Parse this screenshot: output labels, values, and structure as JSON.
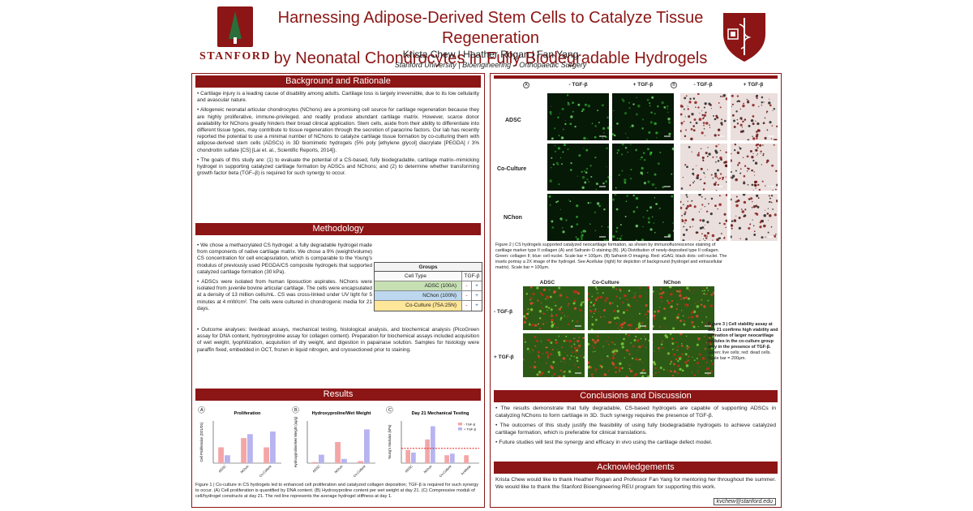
{
  "header": {
    "title_line1": "Harnessing Adipose-Derived Stem Cells to Catalyze Tissue Regeneration",
    "title_line2": "by Neonatal Chondrocytes in Fully Biodegradable Hydrogels",
    "authors": "Krista Chew  |  Heather Rogan  |  Fan Yang",
    "affiliation": "Stanford University  |  Bioengineering – Orthopaedic Surgery",
    "logo_left_text": "STANFORD"
  },
  "background": {
    "heading": "Background and Rationale",
    "p1": "• Cartilage injury is a leading cause of disability among adults. Cartilage loss is largely irreversible, due to its low cellularity and avascular nature.",
    "p2": "• Allogeneic neonatal articular chondrocytes (NChons) are a promising cell source for cartilage regeneration because they are highly proliferative, immune-privileged, and readily produce abundant cartilage matrix. However, scarce donor availability for NChons greatly hinders their broad clinical application. Stem cells, aside from their ability to differentiate into different tissue types, may contribute to tissue regeneration through the secretion of paracrine factors. Our lab has recently reported the potential to use a minimal number of NChons to catalyze cartilage tissue formation by co-culturing them with adipose-derived stem cells (ADSCs) in 3D biomimetic hydrogels (5% poly [ethylene glycol] diacrylate [PEGDA] / 3% chondroitin sulfate [CS] [Lai et. al., Scientific Reports, 2014]).",
    "p3": "• The goals of this study are: (1) to evaluate the potential of a CS-based, fully biodegradable, cartilage matrix–mimicking hydrogel in supporting catalyzed cartilage formation by ADSCs and NChons; and (2) to determine whether transforming growth factor beta (TGF–β) is required for such synergy to occur."
  },
  "methodology": {
    "heading": "Methodology",
    "p1": "• We chose a methacrylated CS hydrogel: a fully degradable hydrogel made from components of native cartilage matrix. We chose a 9% (weight/volume) CS concentration for cell encapsulation, which is comparable to the Young's modulus of previously used PEGDA/CS composite hydrogels that supported catalyzed cartilage formation (30 kPa).",
    "p2": "• ADSCs were isolated from human liposuction aspirates. NChons were isolated from juvenile bovine articular cartilage. The cells were encapsulated at a density of 13 million cells/mL. CS was cross-linked under UV light for 5 minutes at 4 mW/cm². The cells were cultured in chondrogenic media for 21 days.",
    "p3": "• Outcome analyses: live/dead assays, mechanical testing, histological analysis, and biochemical analysis (PicoGreen assay for DNA content, hydroxyproline assay for collagen content). Preparation for biochemical assays included acquisition of wet weight, lyophilization, acquisition of dry weight, and digestion in papainase solution. Samples for histology were paraffin fixed, embedded in OCT, frozen in liquid nitrogen, and cryosectioned prior to staining.",
    "groups_table": {
      "title": "Groups",
      "col1": "Cell Type",
      "col2": "TGF-β",
      "rows": [
        {
          "name": "ADSC (100A)",
          "minus": "-",
          "plus": "+",
          "color": "#c6e0b4"
        },
        {
          "name": "NChon (100N)",
          "minus": "-",
          "plus": "+",
          "color": "#bdd7ee"
        },
        {
          "name": "Co-Culture (75A:25N)",
          "minus": "-",
          "plus": "+",
          "color": "#ffe699"
        }
      ]
    }
  },
  "results": {
    "heading": "Results",
    "caption": "Figure 1 | Co-culture in CS hydrogels led to enhanced cell proliferation and catalyzed collagen deposition; TGF-β is required for such synergy to occur. (A) Cell proliferation is quantified by DNA content. (B) Hydroxyproline content per wet weight at day 21. (C) Compressive moduli of cell/hydrogel constructs at day 21. The red line represents the average hydrogel stiffness at day 1."
  },
  "chart_data": [
    {
      "type": "bar",
      "title": "Proliferation",
      "ylabel": "Cell Proliferation (D21/D1)",
      "categories": [
        "ADSC",
        "NChon",
        "Co-Culture"
      ],
      "series": [
        {
          "name": "- TGF-β",
          "values": [
            0.6,
            0.95,
            0.6
          ]
        },
        {
          "name": "+ TGF-β",
          "values": [
            0.3,
            1.1,
            1.2
          ]
        }
      ],
      "ylim": [
        0,
        1.6
      ]
    },
    {
      "type": "bar",
      "title": "Hydroxyproline/Wet Weight",
      "ylabel": "Hydroxyproline/Wet Weight (ug/g)",
      "categories": [
        "ADSC",
        "NChon",
        "Co-Culture"
      ],
      "series": [
        {
          "name": "- TGF-β",
          "values": [
            10,
            200,
            20
          ]
        },
        {
          "name": "+ TGF-β",
          "values": [
            80,
            40,
            320
          ]
        }
      ],
      "ylim": [
        0,
        400
      ]
    },
    {
      "type": "bar",
      "title": "Day 21 Mechanical Testing",
      "ylabel": "Young's Modulus (kPa)",
      "categories": [
        "ADSC",
        "NChon",
        "Co-Culture",
        "Acellular"
      ],
      "series": [
        {
          "name": "- TGF-β",
          "values": [
            25,
            45,
            15,
            15
          ]
        },
        {
          "name": "+ TGF-β",
          "values": [
            20,
            70,
            18,
            0
          ]
        }
      ],
      "ylim": [
        0,
        80
      ],
      "reference_line": 28
    }
  ],
  "fig2": {
    "label_a": "A",
    "label_b": "B",
    "col_minus": "- TGF-β",
    "col_plus": "+ TGF-β",
    "rows": [
      "ADSC",
      "Co-Culture",
      "NChon"
    ],
    "caption": "Figure 2 | CS hydrogels supported catalyzed neocartilage formation, as shown by immunofluorescence staining of cartilage marker type II collagen (A) and Safranin O staining (B). (A) Distribution of newly-deposited type II collagen. Green: collagen II; blue: cell nuclei. Scale bar = 100μm. (B) Safranin O imaging. Red: sGAG; black dots: cell nuclei. The insets portray a 2X image of the hydrogel. See Acellular (right) for depiction of background (hydrogel and extracellular matrix). Scale bar = 100μm."
  },
  "fig3": {
    "cols": [
      "ADSC",
      "Co-Culture",
      "NChon"
    ],
    "rows": [
      "- TGF-β",
      "+ TGF-β"
    ],
    "caption_bold": "Figure 3 | Cell viability assay at day 21 confirms high viability and formation of larger neocartilage nodules in the co-culture group only in the presence of TGF-β.",
    "caption_rest": "Green: live cells; red: dead cells. Scale bar = 200μm."
  },
  "conclusions": {
    "heading": "Conclusions and Discussion",
    "p1": "• The results demonstrate that fully degradable, CS-based hydrogels are capable of supporting ADSCs in catalyzing NChons to form cartilage in 3D. Such synergy requires the presence of TGF-β.",
    "p2": "• The outcomes of this study justify the feasibility of using fully biodegradable hydrogels to achieve catalyzed cartilage formation, which is preferable for clinical translations.",
    "p3": "• Future studies will test the synergy and efficacy in vivo using the cartilage defect model."
  },
  "acknowledgements": {
    "heading": "Acknowledgements",
    "text": "Krista Chew would like to thank Heather Rogan and Professor Fan Yang for mentoring her throughout the summer. We would like to thank the Stanford Bioengineering REU program for supporting this work.",
    "email": "kvchew@stanford.edu"
  },
  "colors": {
    "cardinal": "#8c1515",
    "bar_minus": "#f4a6a6",
    "bar_plus": "#b7b4f0"
  }
}
